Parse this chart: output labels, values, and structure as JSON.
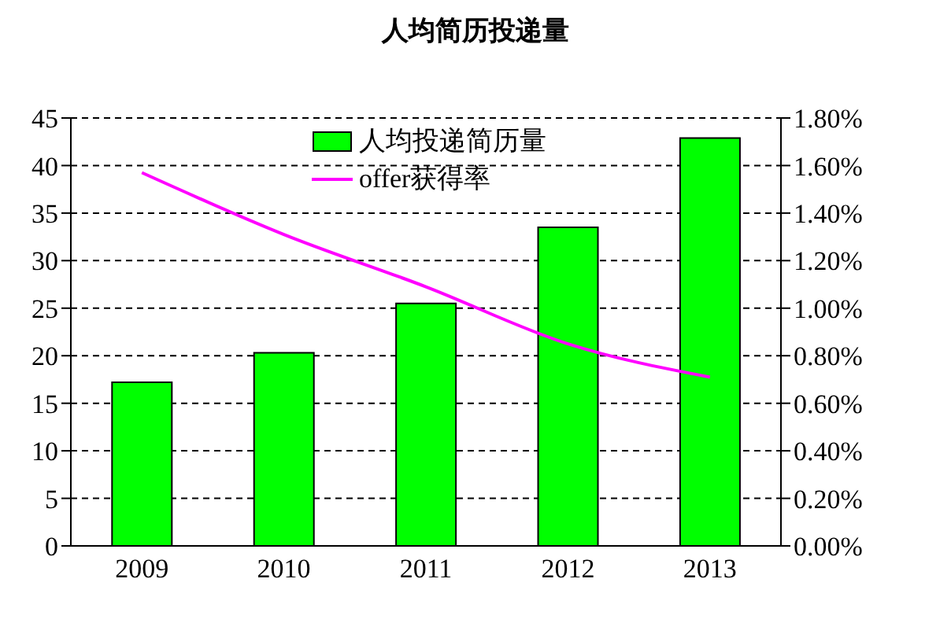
{
  "chart_data": {
    "type": "bar",
    "title": "人均简历投递量",
    "categories": [
      "2009",
      "2010",
      "2011",
      "2012",
      "2013"
    ],
    "series": [
      {
        "name": "人均投递简历量",
        "color": "#00ff00",
        "values": [
          17.2,
          20.3,
          25.5,
          33.5,
          42.9
        ]
      },
      {
        "name": "offer获得率",
        "type": "line",
        "axis": "y2",
        "color": "#ff00ff",
        "values": [
          1.57,
          1.31,
          1.09,
          0.85,
          0.71
        ]
      }
    ],
    "ylim": [
      0,
      45
    ],
    "yticks": [
      0,
      5,
      10,
      15,
      20,
      25,
      30,
      35,
      40,
      45
    ],
    "y2lim": [
      0,
      1.8
    ],
    "y2ticks": [
      {
        "value": 0,
        "label": "0.00%"
      },
      {
        "value": 0.2,
        "label": "0.20%"
      },
      {
        "value": 0.4,
        "label": "0.40%"
      },
      {
        "value": 0.6,
        "label": "0.60%"
      },
      {
        "value": 0.8,
        "label": "0.80%"
      },
      {
        "value": 1.0,
        "label": "1.00%"
      },
      {
        "value": 1.2,
        "label": "1.20%"
      },
      {
        "value": 1.4,
        "label": "1.40%"
      },
      {
        "value": 1.6,
        "label": "1.60%"
      },
      {
        "value": 1.8,
        "label": "1.80%"
      }
    ],
    "grid": "y",
    "legend": "top",
    "marker": "none"
  }
}
